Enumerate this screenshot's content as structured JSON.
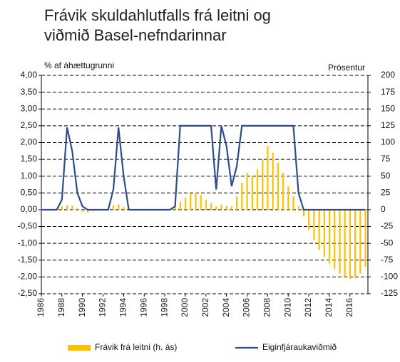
{
  "chart_data": {
    "type": "bar-line",
    "title": "Frávik skuldahlutfalls frá leitni og viðmið Basel-nefndarinnar",
    "ylabel": "% af áhættugrunni",
    "y2label": "Prósentur",
    "x": [
      1986,
      1986.5,
      1987,
      1987.5,
      1988,
      1988.5,
      1989,
      1989.5,
      1990,
      1990.5,
      1991,
      1991.5,
      1992,
      1992.5,
      1993,
      1993.5,
      1994,
      1994.5,
      1995,
      1995.5,
      1996,
      1996.5,
      1997,
      1997.5,
      1998,
      1998.5,
      1999,
      1999.5,
      2000,
      2000.5,
      2001,
      2001.5,
      2002,
      2002.5,
      2003,
      2003.5,
      2004,
      2004.5,
      2005,
      2005.5,
      2006,
      2006.5,
      2007,
      2007.5,
      2008,
      2008.5,
      2009,
      2009.5,
      2010,
      2010.5,
      2011,
      2011.5,
      2012,
      2012.5,
      2013,
      2013.5,
      2014,
      2014.5,
      2015,
      2015.5,
      2016,
      2016.5,
      2017,
      2017.5
    ],
    "series": [
      {
        "name": "Frávik frá leitni (h. ás)",
        "type": "bar",
        "axis": "y2",
        "color": "#ffc000",
        "values": [
          1,
          1,
          1,
          2,
          5,
          7,
          6,
          2,
          -3,
          -4,
          -2,
          -1,
          -1,
          3,
          7,
          8,
          4,
          1,
          0,
          0,
          0,
          0,
          0,
          0,
          0,
          1,
          5,
          12,
          18,
          24,
          26,
          22,
          15,
          10,
          5,
          8,
          6,
          5,
          20,
          40,
          55,
          50,
          60,
          75,
          95,
          85,
          70,
          55,
          35,
          20,
          5,
          -10,
          -30,
          -45,
          -60,
          -70,
          -80,
          -88,
          -95,
          -100,
          -103,
          -102,
          -95,
          -85
        ]
      },
      {
        "name": "Eiginfjáraukaviðmið",
        "type": "line",
        "color": "#2f4b8c",
        "values": [
          0,
          0,
          0,
          0,
          0.3,
          2.45,
          1.75,
          0.5,
          0.1,
          0,
          0,
          0,
          0,
          0,
          0.6,
          2.45,
          1.0,
          0,
          0,
          0,
          0,
          0,
          0,
          0,
          0,
          0,
          0.1,
          2.5,
          2.5,
          2.5,
          2.5,
          2.5,
          2.5,
          2.5,
          0.6,
          2.5,
          1.9,
          0.7,
          1.3,
          2.5,
          2.5,
          2.5,
          2.5,
          2.5,
          2.5,
          2.5,
          2.5,
          2.5,
          2.5,
          2.5,
          0.5,
          0,
          0,
          0,
          0,
          0,
          0,
          0,
          0,
          0,
          0,
          0,
          0,
          0
        ]
      }
    ],
    "xlim": [
      1986,
      2017.75
    ],
    "xticks": [
      1986,
      1988,
      1990,
      1992,
      1994,
      1996,
      1998,
      2000,
      2002,
      2004,
      2006,
      2008,
      2010,
      2012,
      2014,
      2016
    ],
    "ylim": [
      -2.5,
      4
    ],
    "yticks": [
      {
        "value": -2.5,
        "label": "-2,50"
      },
      {
        "value": -2,
        "label": "-2,00"
      },
      {
        "value": -1.5,
        "label": "-1,50"
      },
      {
        "value": -1,
        "label": "-1,00"
      },
      {
        "value": -0.5,
        "label": "-0,50"
      },
      {
        "value": 0,
        "label": "0,00"
      },
      {
        "value": 0.5,
        "label": "0,50"
      },
      {
        "value": 1,
        "label": "1,00"
      },
      {
        "value": 1.5,
        "label": "1,50"
      },
      {
        "value": 2,
        "label": "2,00"
      },
      {
        "value": 2.5,
        "label": "2,50"
      },
      {
        "value": 3,
        "label": "3,00"
      },
      {
        "value": 3.5,
        "label": "3,50"
      },
      {
        "value": 4,
        "label": "4,00"
      }
    ],
    "y2lim": [
      -125,
      200
    ],
    "y2ticks": [
      -125,
      -100,
      -75,
      -50,
      -25,
      0,
      25,
      50,
      75,
      100,
      125,
      150,
      175,
      200
    ],
    "grid": true
  }
}
